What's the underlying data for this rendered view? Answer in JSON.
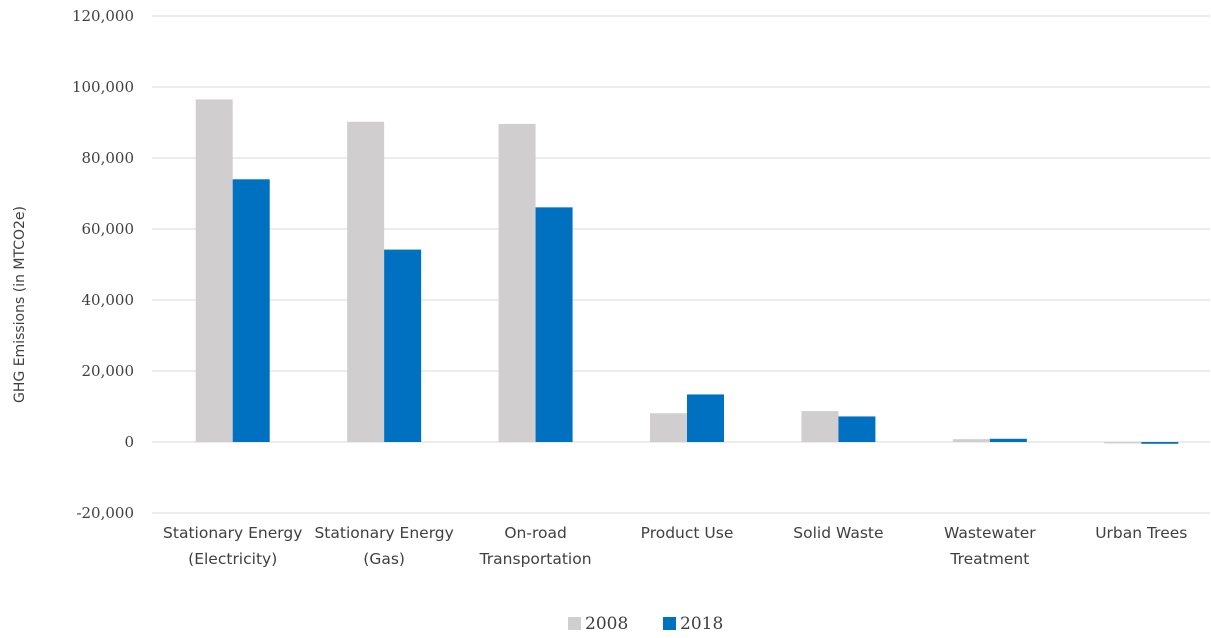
{
  "chart_data": {
    "type": "bar",
    "categories": [
      [
        "Stationary Energy",
        "(Electricity)"
      ],
      [
        "Stationary Energy",
        "(Gas)"
      ],
      [
        "On-road",
        "Transportation"
      ],
      [
        "Product Use"
      ],
      [
        "Solid Waste"
      ],
      [
        "Wastewater",
        "Treatment"
      ],
      [
        "Urban Trees"
      ]
    ],
    "series": [
      {
        "name": "2008",
        "color": "#d0cece",
        "values": [
          96500,
          90200,
          89600,
          8100,
          8700,
          800,
          -400
        ]
      },
      {
        "name": "2018",
        "color": "#0070c0",
        "values": [
          74000,
          54200,
          66100,
          13400,
          7200,
          900,
          -500
        ]
      }
    ],
    "ylabel": "GHG Emissions  (in MTCO2e)",
    "ylim": [
      -20000,
      120000
    ],
    "yticks": [
      -20000,
      0,
      20000,
      40000,
      60000,
      80000,
      100000,
      120000
    ],
    "ytick_labels": [
      "-20,000",
      "0",
      "20,000",
      "40,000",
      "60,000",
      "80,000",
      "100,000",
      "120,000"
    ],
    "grid": true,
    "legend_position": "bottom"
  }
}
